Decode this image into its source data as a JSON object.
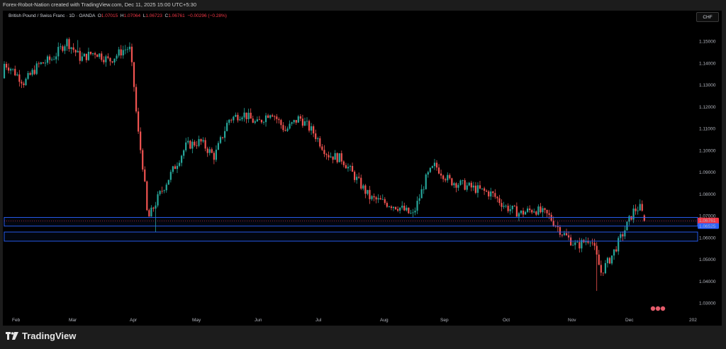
{
  "header": {
    "caption": "Forex-Robot-Nation created with TradingView.com, Dec 11, 2025 15:00 UTC+5:30"
  },
  "legend": {
    "symbol": "British Pound / Swiss Franc · 1D · OANDA",
    "o_label": "O",
    "o_value": "1.07015",
    "h_label": "H",
    "h_value": "1.07064",
    "l_label": "L",
    "l_value": "1.06723",
    "c_label": "C",
    "c_value": "1.06761",
    "change": "−0.00296 (−0.28%)"
  },
  "currency_button": "CHF",
  "brand": {
    "name": "TradingView"
  },
  "colors": {
    "background": "#000000",
    "up": "#26a69a",
    "down": "#ef5350",
    "zone_line": "#2962ff",
    "price_tag": "#f23645",
    "level_tag": "#2962ff"
  },
  "chart_data": {
    "type": "candlestick",
    "title": "British Pound / Swiss Franc · 1D · OANDA",
    "y_ticks": [
      "1.03000",
      "1.04000",
      "1.05000",
      "1.06000",
      "1.07000",
      "1.08000",
      "1.09000",
      "1.10000",
      "1.11000",
      "1.12000",
      "1.13000",
      "1.14000",
      "1.15000"
    ],
    "ylim": [
      1.026,
      1.16
    ],
    "x_ticks": [
      "Feb",
      "Mar",
      "Apr",
      "May",
      "Jun",
      "Jul",
      "Aug",
      "Sep",
      "Oct",
      "Nov",
      "Dec",
      "202"
    ],
    "last_price": "1.06761",
    "countdown": "12:29:10",
    "level_label": "1.06525",
    "zones": [
      {
        "top": 1.0692,
        "bottom": 1.0652
      },
      {
        "top": 1.0625,
        "bottom": 1.0583
      }
    ],
    "close_path": [
      {
        "date": "Jan 2",
        "close": 1.133
      },
      {
        "date": "Jan 10",
        "close": 1.139
      },
      {
        "date": "Jan 17",
        "close": 1.132
      },
      {
        "date": "Jan 24",
        "close": 1.142
      },
      {
        "date": "Jan 31",
        "close": 1.138
      },
      {
        "date": "Feb 7",
        "close": 1.131
      },
      {
        "date": "Feb 14",
        "close": 1.139
      },
      {
        "date": "Feb 21",
        "close": 1.142
      },
      {
        "date": "Feb 28",
        "close": 1.15
      },
      {
        "date": "Mar 7",
        "close": 1.142
      },
      {
        "date": "Mar 14",
        "close": 1.145
      },
      {
        "date": "Mar 21",
        "close": 1.141
      },
      {
        "date": "Mar 28",
        "close": 1.146
      },
      {
        "date": "Mar 31",
        "close": 1.147
      },
      {
        "date": "Apr 2",
        "close": 1.132
      },
      {
        "date": "Apr 4",
        "close": 1.11
      },
      {
        "date": "Apr 7",
        "close": 1.09
      },
      {
        "date": "Apr 9",
        "close": 1.068
      },
      {
        "date": "Apr 14",
        "close": 1.078
      },
      {
        "date": "Apr 21",
        "close": 1.09
      },
      {
        "date": "Apr 28",
        "close": 1.102
      },
      {
        "date": "May 5",
        "close": 1.104
      },
      {
        "date": "May 12",
        "close": 1.097
      },
      {
        "date": "May 19",
        "close": 1.114
      },
      {
        "date": "May 26",
        "close": 1.117
      },
      {
        "date": "Jun 2",
        "close": 1.112
      },
      {
        "date": "Jun 9",
        "close": 1.118
      },
      {
        "date": "Jun 16",
        "close": 1.109
      },
      {
        "date": "Jun 23",
        "close": 1.115
      },
      {
        "date": "Jun 30",
        "close": 1.108
      },
      {
        "date": "Jul 7",
        "close": 1.098
      },
      {
        "date": "Jul 14",
        "close": 1.096
      },
      {
        "date": "Jul 21",
        "close": 1.087
      },
      {
        "date": "Jul 28",
        "close": 1.078
      },
      {
        "date": "Aug 4",
        "close": 1.076
      },
      {
        "date": "Aug 11",
        "close": 1.074
      },
      {
        "date": "Aug 18",
        "close": 1.07
      },
      {
        "date": "Aug 25",
        "close": 1.088
      },
      {
        "date": "Aug 29",
        "close": 1.093
      },
      {
        "date": "Sep 5",
        "close": 1.086
      },
      {
        "date": "Sep 12",
        "close": 1.084
      },
      {
        "date": "Sep 19",
        "close": 1.082
      },
      {
        "date": "Sep 26",
        "close": 1.08
      },
      {
        "date": "Oct 3",
        "close": 1.074
      },
      {
        "date": "Oct 10",
        "close": 1.071
      },
      {
        "date": "Oct 17",
        "close": 1.073
      },
      {
        "date": "Oct 24",
        "close": 1.07
      },
      {
        "date": "Oct 31",
        "close": 1.062
      },
      {
        "date": "Nov 7",
        "close": 1.056
      },
      {
        "date": "Nov 14",
        "close": 1.06
      },
      {
        "date": "Nov 19",
        "close": 1.044
      },
      {
        "date": "Nov 24",
        "close": 1.051
      },
      {
        "date": "Dec 1",
        "close": 1.064
      },
      {
        "date": "Dec 5",
        "close": 1.072
      },
      {
        "date": "Dec 8",
        "close": 1.074
      },
      {
        "date": "Dec 11",
        "close": 1.0676
      }
    ]
  }
}
